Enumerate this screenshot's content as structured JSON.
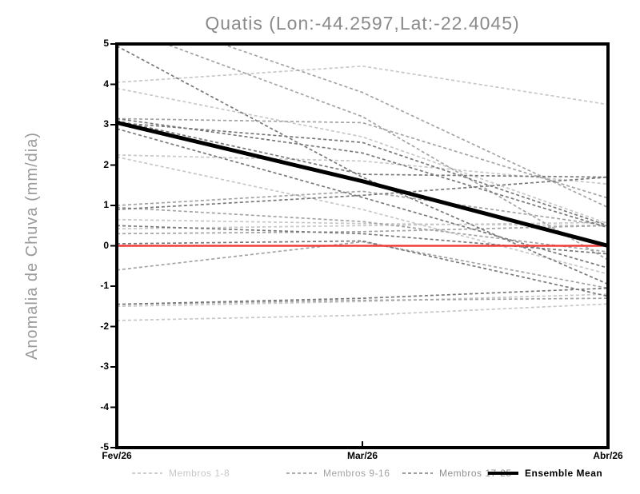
{
  "chart_data": {
    "type": "line",
    "title": "Quatis (Lon:-44.2597,Lat:-22.4045)",
    "ylabel": "Anomalia de Chuva (mm/dia)",
    "x_tick_labels": [
      "Fev/26",
      "Mar/26",
      "Abr/26"
    ],
    "y_ticks": [
      "5",
      "4",
      "3",
      "2",
      "1",
      "0",
      "-1",
      "-2",
      "-3",
      "-4",
      "-5"
    ],
    "y_tick_values": [
      5,
      4,
      3,
      2,
      1,
      0,
      -1,
      -2,
      -3,
      -4,
      -5
    ],
    "ylim": [
      -5,
      5
    ],
    "grid": false,
    "legend_position": "bottom",
    "title_color": "#8a8a8a",
    "axis_color": "#000000",
    "zero_line": {
      "value": 0,
      "color": "#f23b3b",
      "width": 2.5
    },
    "ensemble_mean": {
      "name": "Ensemble Mean",
      "color": "#000000",
      "style": "solid",
      "width": 5,
      "values": [
        3.05,
        1.6,
        0.0
      ]
    },
    "member_groups": [
      {
        "name": "Membros 1-8",
        "color": "#c7c7c7",
        "style": "dashed",
        "members": [
          [
            4.05,
            4.45,
            3.5
          ],
          [
            3.9,
            2.7,
            0.55
          ],
          [
            2.25,
            2.1,
            1.53
          ],
          [
            0.65,
            0.55,
            0.5
          ],
          [
            0.42,
            0.5,
            0.58
          ],
          [
            -1.5,
            -1.38,
            -1.2
          ],
          [
            -1.85,
            -1.72,
            -1.44
          ],
          [
            2.2,
            0.9,
            -0.7
          ]
        ]
      },
      {
        "name": "Membros 9-16",
        "color": "#a3a3a3",
        "style": "dashed",
        "members": [
          [
            5.45,
            3.2,
            -0.35
          ],
          [
            5.9,
            3.8,
            0.95
          ],
          [
            3.15,
            3.05,
            1.18
          ],
          [
            1.0,
            1.35,
            0.5
          ],
          [
            0.95,
            0.6,
            -0.15
          ],
          [
            0.3,
            0.35,
            0.5
          ],
          [
            -0.6,
            0.1,
            -1.05
          ],
          [
            -1.45,
            -1.35,
            -1.3
          ]
        ]
      },
      {
        "name": "Membros 17-25",
        "color": "#787878",
        "style": "dashed",
        "members": [
          [
            3.1,
            1.77,
            1.7
          ],
          [
            3.05,
            2.56,
            0.5
          ],
          [
            2.9,
            1.2,
            -0.55
          ],
          [
            0.9,
            1.25,
            1.7
          ],
          [
            0.5,
            0.3,
            -0.2
          ],
          [
            0.05,
            0.12,
            -1.25
          ],
          [
            -1.45,
            -1.3,
            -1.05
          ],
          [
            4.95,
            1.7,
            -0.95
          ],
          [
            3.15,
            2.3,
            0.45
          ]
        ]
      }
    ],
    "legend": [
      {
        "label": "Membros 1-8",
        "color": "#c7c7c7",
        "text_color": "#c7c7c7",
        "style": "dashed"
      },
      {
        "label": "Membros 9-16",
        "color": "#a3a3a3",
        "text_color": "#a3a3a3",
        "style": "dashed"
      },
      {
        "label": "Membros 17-25",
        "color": "#8f8f8f",
        "text_color": "#8f8f8f",
        "style": "dashed"
      },
      {
        "label": "Ensemble Mean",
        "color": "#000000",
        "text_color": "#000000",
        "style": "solid"
      }
    ]
  }
}
